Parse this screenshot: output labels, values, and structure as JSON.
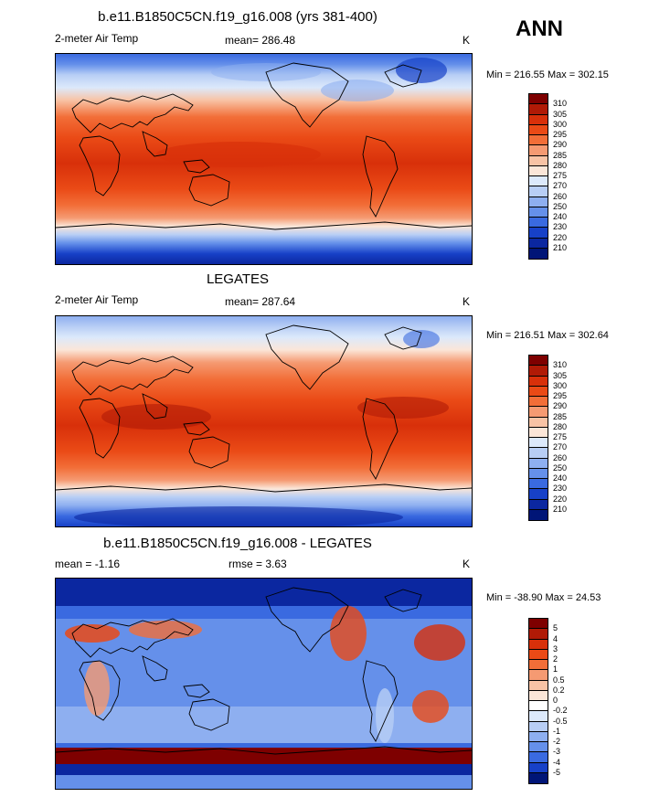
{
  "season": "ANN",
  "panels": [
    {
      "title": "b.e11.B1850C5CN.f19_g16.008 (yrs 381-400)",
      "left_label": "2-meter Air Temp",
      "center_label": "mean= 286.48",
      "units": "K",
      "minmax": "Min = 216.55 Max = 302.15",
      "colorbar": {
        "labels": [
          "310",
          "305",
          "300",
          "295",
          "290",
          "285",
          "280",
          "275",
          "270",
          "260",
          "250",
          "240",
          "230",
          "220",
          "210"
        ],
        "colors": [
          "#7e0000",
          "#b01a06",
          "#d8300a",
          "#ea4a16",
          "#f26e38",
          "#f59a72",
          "#f8c3a5",
          "#fbe6d8",
          "#dce9fb",
          "#b8cef5",
          "#8eaff0",
          "#6590ea",
          "#3a6ae0",
          "#1741c8",
          "#0b27a0",
          "#001577"
        ]
      }
    },
    {
      "title": "LEGATES",
      "left_label": "2-meter Air Temp",
      "center_label": "mean= 287.64",
      "units": "K",
      "minmax": "Min = 216.51 Max = 302.64",
      "colorbar": {
        "labels": [
          "310",
          "305",
          "300",
          "295",
          "290",
          "285",
          "280",
          "275",
          "270",
          "260",
          "250",
          "240",
          "230",
          "220",
          "210"
        ],
        "colors": [
          "#7e0000",
          "#b01a06",
          "#d8300a",
          "#ea4a16",
          "#f26e38",
          "#f59a72",
          "#f8c3a5",
          "#fbe6d8",
          "#dce9fb",
          "#b8cef5",
          "#8eaff0",
          "#6590ea",
          "#3a6ae0",
          "#1741c8",
          "#0b27a0",
          "#001577"
        ]
      }
    },
    {
      "title": "b.e11.B1850C5CN.f19_g16.008 - LEGATES",
      "left_label": "mean =  -1.16",
      "center_label": "rmse =   3.63",
      "units": "K",
      "minmax": "Min = -38.90 Max =  24.53",
      "colorbar": {
        "labels": [
          "5",
          "4",
          "3",
          "2",
          "1",
          "0.5",
          "0.2",
          "0",
          "-0.2",
          "-0.5",
          "-1",
          "-2",
          "-3",
          "-4",
          "-5"
        ],
        "colors": [
          "#7e0000",
          "#b01a06",
          "#d8300a",
          "#ea4a16",
          "#f26e38",
          "#f59a72",
          "#f8c3a5",
          "#fbe6d8",
          "#ffffff",
          "#dce9fb",
          "#b8cef5",
          "#8eaff0",
          "#6590ea",
          "#3a6ae0",
          "#1741c8",
          "#001577"
        ]
      }
    }
  ]
}
